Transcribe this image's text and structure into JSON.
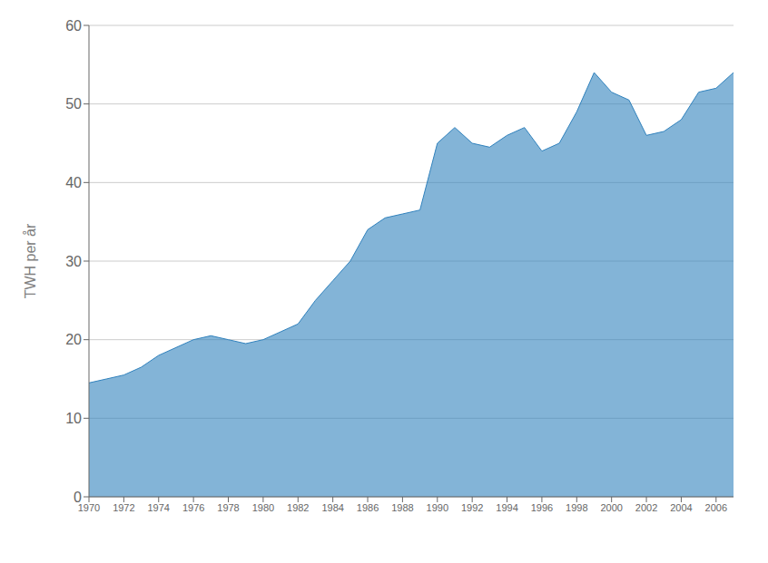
{
  "chart_data": {
    "type": "area",
    "ylabel": "TWH per år",
    "x": [
      1970,
      1971,
      1972,
      1973,
      1974,
      1975,
      1976,
      1977,
      1978,
      1979,
      1980,
      1981,
      1982,
      1983,
      1984,
      1985,
      1986,
      1987,
      1988,
      1989,
      1990,
      1991,
      1992,
      1993,
      1994,
      1995,
      1996,
      1997,
      1998,
      1999,
      2000,
      2001,
      2002,
      2003,
      2004,
      2005,
      2006,
      2007
    ],
    "values": [
      14.5,
      15.0,
      15.5,
      16.5,
      18.0,
      19.0,
      20.0,
      20.5,
      20.0,
      19.5,
      20.0,
      21.0,
      22.0,
      25.0,
      27.5,
      30.0,
      34.0,
      35.5,
      36.0,
      36.5,
      45.0,
      47.0,
      45.0,
      44.5,
      46.0,
      47.0,
      44.0,
      45.0,
      49.0,
      54.0,
      51.5,
      50.5,
      46.0,
      46.5,
      48.0,
      51.5,
      52.0,
      54.0
    ],
    "xlim": [
      1970,
      2007
    ],
    "xticks": [
      1970,
      1972,
      1974,
      1976,
      1978,
      1980,
      1982,
      1984,
      1986,
      1988,
      1990,
      1992,
      1994,
      1996,
      1998,
      2000,
      2002,
      2004,
      2006
    ],
    "ylim": [
      0,
      60
    ],
    "yticks": [
      0,
      10,
      20,
      30,
      40,
      50,
      60
    ],
    "grid": true
  }
}
